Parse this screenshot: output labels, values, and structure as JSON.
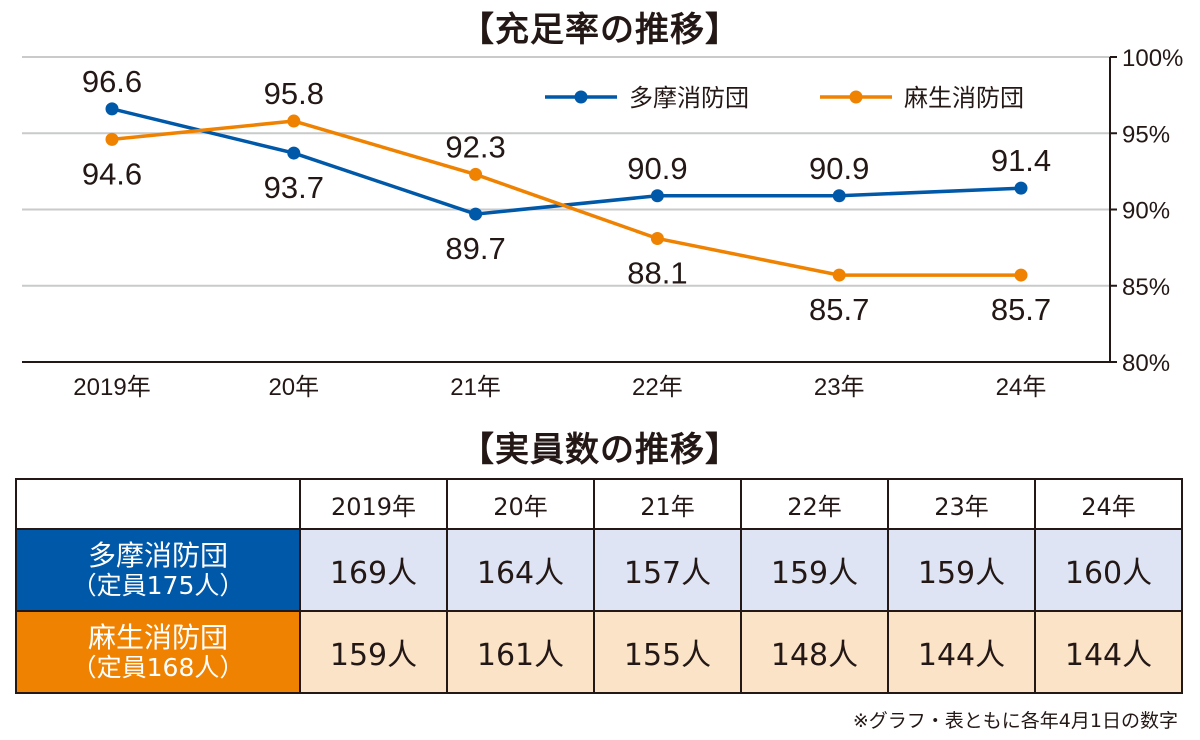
{
  "chart_data": [
    {
      "type": "line",
      "title": "【充足率の推移】",
      "categories": [
        "2019年",
        "20年",
        "21年",
        "22年",
        "23年",
        "24年"
      ],
      "series": [
        {
          "name": "多摩消防団",
          "color": "#0058a8",
          "values": [
            96.6,
            93.7,
            89.7,
            90.9,
            90.9,
            91.4
          ],
          "label_positions": [
            "above",
            "below",
            "below",
            "above",
            "above",
            "above"
          ]
        },
        {
          "name": "麻生消防団",
          "color": "#ef8200",
          "values": [
            94.6,
            95.8,
            92.3,
            88.1,
            85.7,
            85.7
          ],
          "label_positions": [
            "below",
            "above",
            "above",
            "below",
            "below",
            "below"
          ]
        }
      ],
      "ylim": [
        80,
        100
      ],
      "yticks": [
        80,
        85,
        90,
        95,
        100
      ],
      "ytick_labels": [
        "80%",
        "85%",
        "90%",
        "95%",
        "100%"
      ],
      "yaxis_side": "right",
      "grid": true,
      "legend": "top-right"
    },
    {
      "type": "table",
      "title": "【実員数の推移】",
      "columns": [
        "",
        "2019年",
        "20年",
        "21年",
        "22年",
        "23年",
        "24年"
      ],
      "rows": [
        {
          "name": "多摩消防団",
          "sub": "（定員175人）",
          "color": "#0058a8",
          "bg": "#dfe4f4",
          "values": [
            "169人",
            "164人",
            "157人",
            "159人",
            "159人",
            "160人"
          ]
        },
        {
          "name": "麻生消防団",
          "sub": "（定員168人）",
          "color": "#ef8200",
          "bg": "#fbe3c8",
          "values": [
            "159人",
            "161人",
            "155人",
            "148人",
            "144人",
            "144人"
          ]
        }
      ]
    }
  ],
  "note": "※グラフ・表ともに各年4月1日の数字"
}
